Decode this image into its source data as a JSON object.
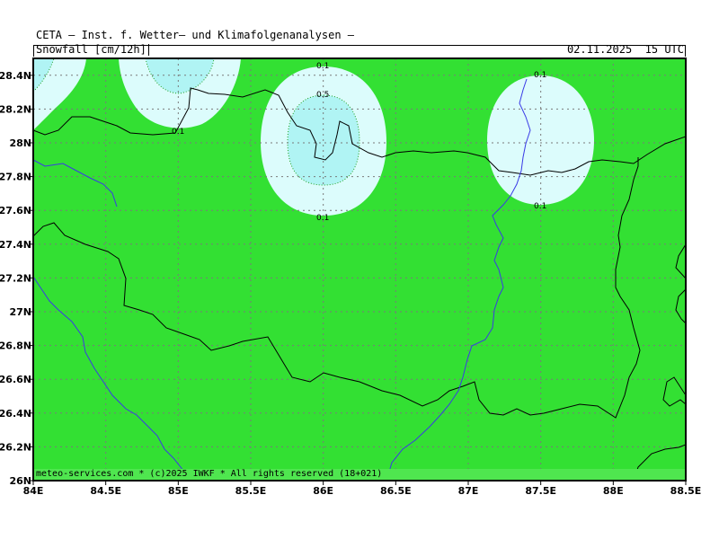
{
  "header": {
    "title": "CETA — Inst. f. Wetter— und Klimafolgenanalysen —",
    "parameter": "Snowfall [cm/12h]",
    "datetime": "02.11.2025  15 UTC"
  },
  "map": {
    "lon_range": [
      84,
      88.5
    ],
    "lat_range": [
      26,
      28.5
    ],
    "x_ticks": [
      "84E",
      "84.5E",
      "85E",
      "85.5E",
      "86E",
      "86.5E",
      "87E",
      "87.5E",
      "88E",
      "88.5E"
    ],
    "y_ticks": [
      "26N",
      "26.2N",
      "26.4N",
      "26.6N",
      "26.8N",
      "27N",
      "27.2N",
      "27.4N",
      "27.6N",
      "27.8N",
      "28N",
      "28.2N",
      "28.4N"
    ],
    "grid": true,
    "colors": {
      "background": "#33e033",
      "level_0_1": "#dcfcfc",
      "level_0_5": "#b0f4f4",
      "border": "#000000",
      "river": "#3a3ae6"
    },
    "contour_labels": {
      "a": "0.1",
      "b": "0.1",
      "c": "0.5",
      "d": "0.1",
      "e": "0.1",
      "f": "0.1"
    }
  },
  "footer": {
    "credit": "meteo-services.com * (c)2025 IWKF * All rights reserved (18+021)"
  }
}
